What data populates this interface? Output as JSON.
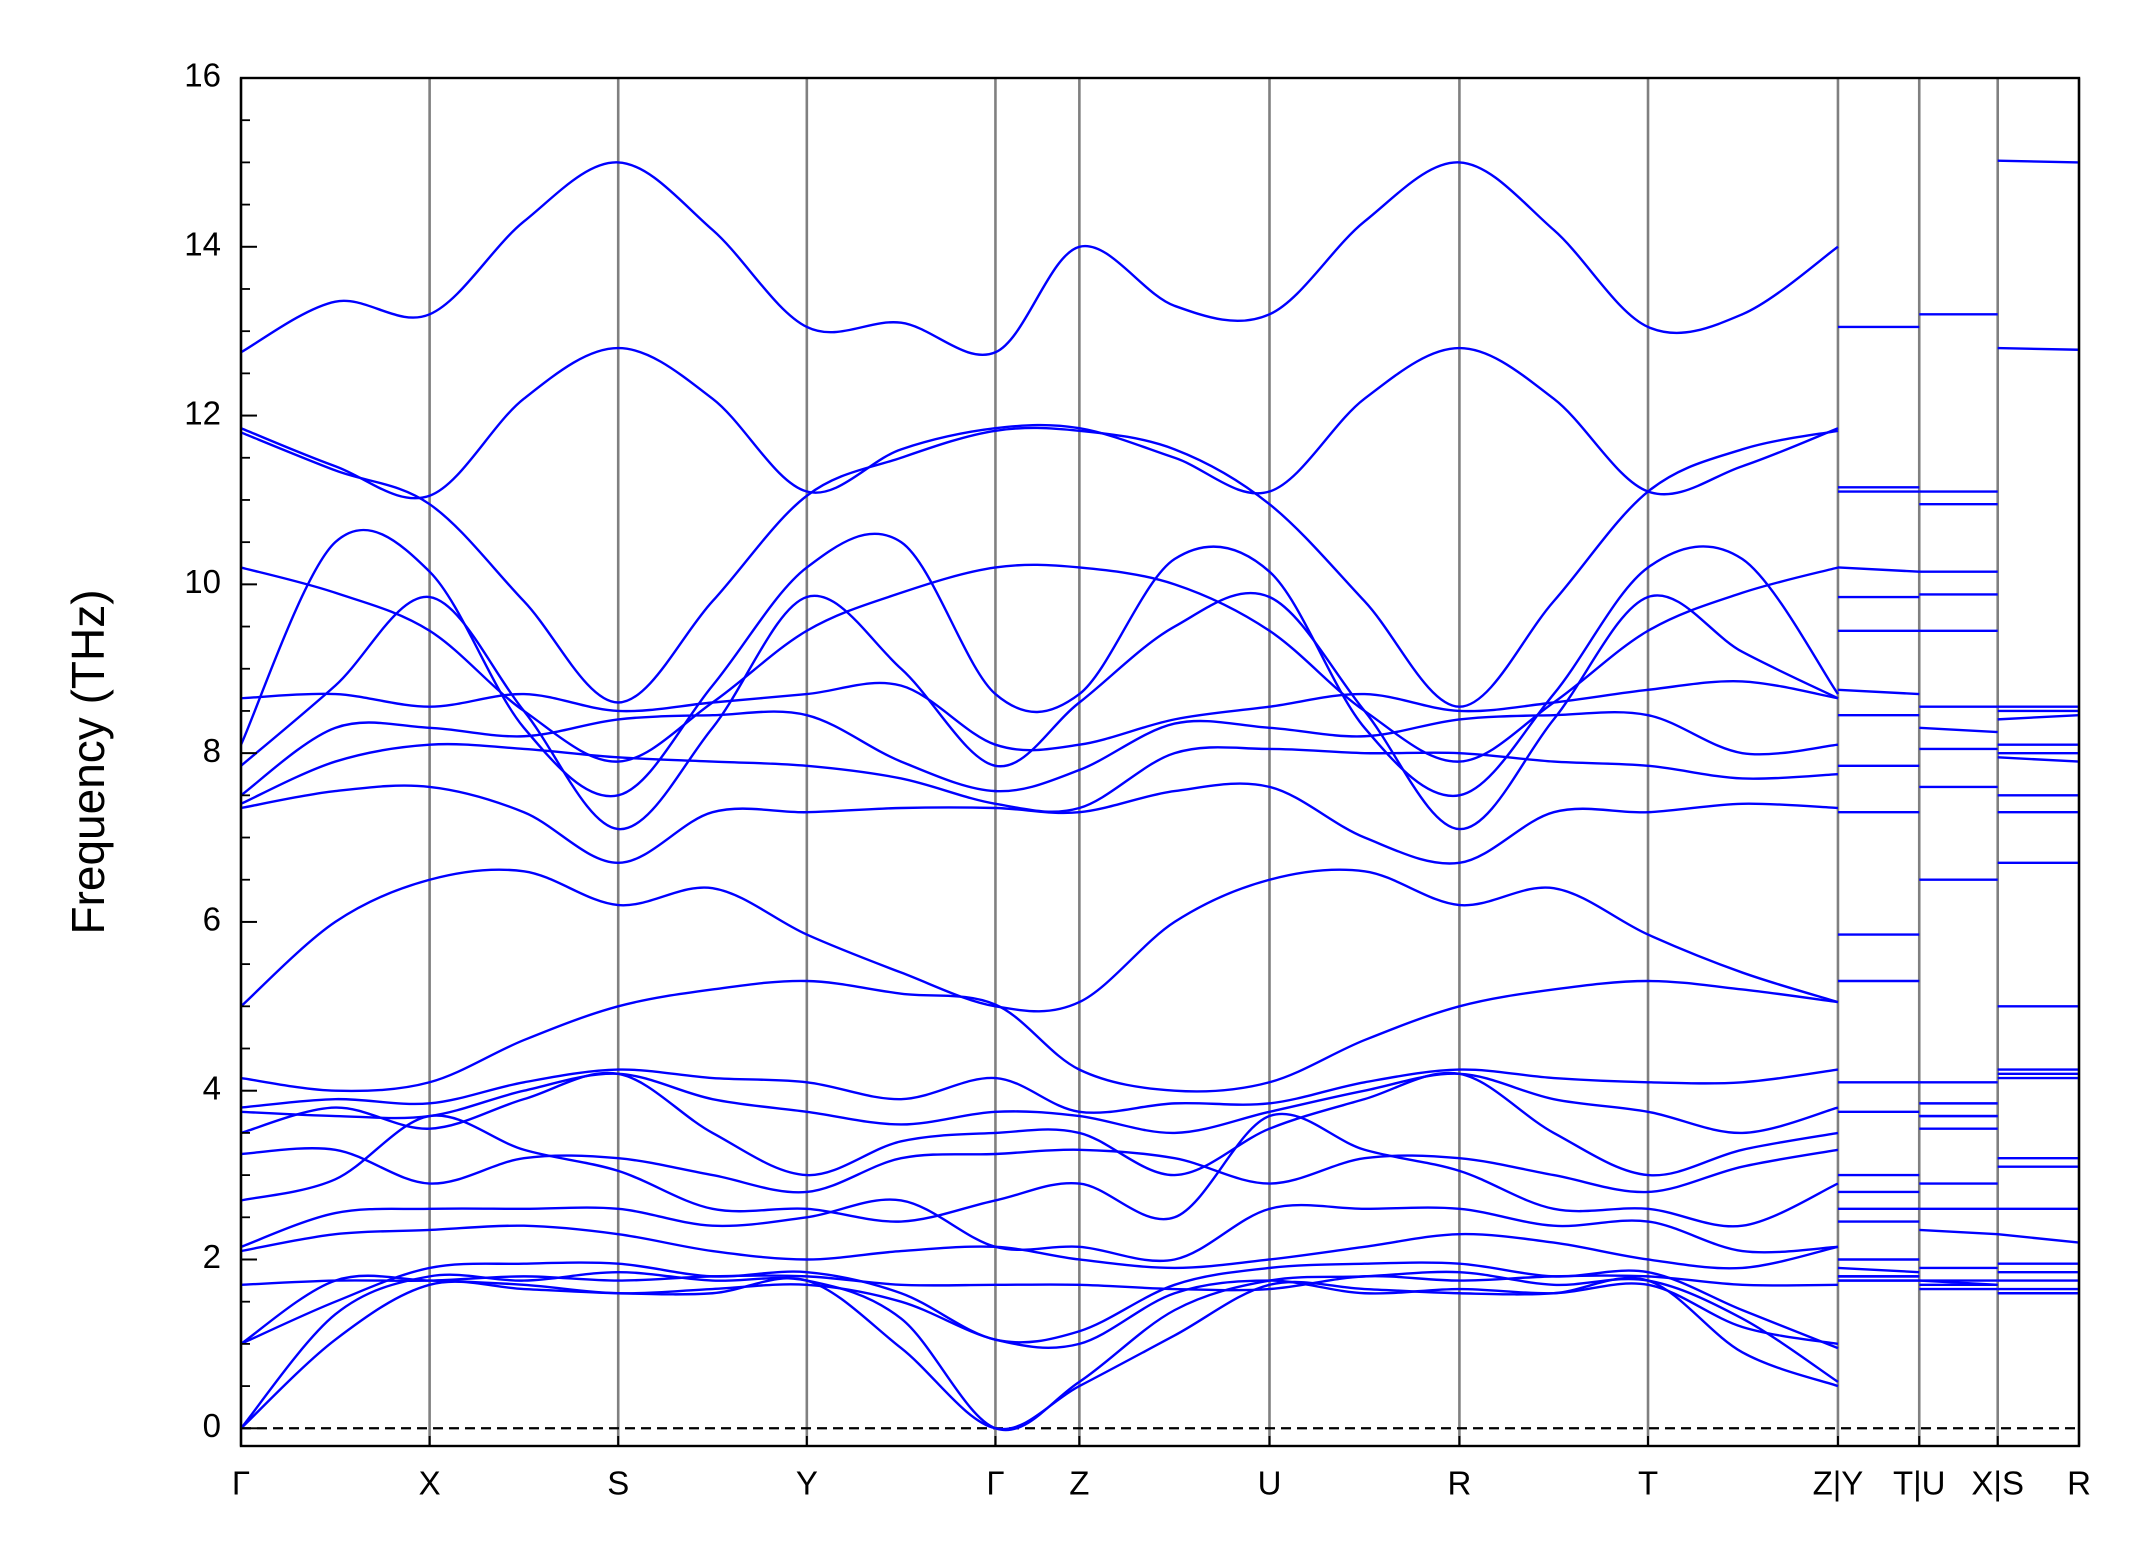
{
  "chart_data": {
    "type": "line",
    "y_label": "Frequency (THz)",
    "x": [
      0,
      0.5,
      1,
      1.5,
      2,
      2.5,
      3,
      3.5,
      4,
      4.445,
      4.95,
      5.453,
      5.957,
      6.46,
      6.96,
      7.46,
      7.96,
      8.467,
      8.467,
      8.467,
      8.898,
      8.898,
      8.898,
      9.314,
      9.314,
      9.314,
      9.745
    ],
    "xlim": [
      0,
      9.745
    ],
    "xticks": [
      {
        "value": 0,
        "label": "Γ"
      },
      {
        "value": 1,
        "label": "X"
      },
      {
        "value": 2,
        "label": "S"
      },
      {
        "value": 3,
        "label": "Y"
      },
      {
        "value": 4,
        "label": "Γ"
      },
      {
        "value": 4.445,
        "label": "Z"
      },
      {
        "value": 5.453,
        "label": "U"
      },
      {
        "value": 6.46,
        "label": "R"
      },
      {
        "value": 7.46,
        "label": "T"
      },
      {
        "value": 8.467,
        "label": "Z|Y"
      },
      {
        "value": 8.898,
        "label": "T|U"
      },
      {
        "value": 9.314,
        "label": "X|S"
      },
      {
        "value": 9.745,
        "label": "R"
      }
    ],
    "ylim": [
      -0.21,
      16
    ],
    "yticks": [
      0,
      2,
      4,
      6,
      8,
      10,
      12,
      14,
      16
    ],
    "yminorticks": [
      0.5,
      1,
      1.5,
      2.5,
      3,
      3.5,
      4.5,
      5,
      5.5,
      6.5,
      7,
      7.5,
      8.5,
      9,
      9.5,
      10.5,
      11,
      11.5,
      12.5,
      13,
      13.5,
      14.5,
      15,
      15.5
    ],
    "reference_line": {
      "y": 0,
      "style": "dashed",
      "color": "#000000"
    },
    "vline_color": "#808080",
    "color": "#0000ff",
    "series": [
      {
        "values": [
          12.75,
          13.35,
          13.2,
          14.3,
          15.0,
          14.2,
          13.05,
          13.1,
          12.75,
          14.0,
          13.3,
          13.2,
          14.3,
          15.0,
          14.2,
          13.05,
          13.2,
          14.0,
          null,
          13.05,
          13.05,
          null,
          13.2,
          13.2,
          null,
          15.02,
          15.0
        ]
      },
      {
        "values": [
          11.85,
          11.4,
          11.05,
          12.2,
          12.8,
          12.2,
          11.1,
          11.6,
          11.85,
          11.85,
          11.5,
          11.1,
          12.2,
          12.8,
          12.2,
          11.1,
          11.4,
          11.85,
          null,
          11.15,
          11.15,
          null,
          11.1,
          11.1,
          null,
          12.8,
          12.78
        ]
      },
      {
        "values": [
          11.8,
          11.35,
          10.95,
          9.8,
          8.6,
          9.8,
          11.05,
          11.5,
          11.82,
          11.82,
          11.6,
          10.95,
          9.8,
          8.55,
          9.8,
          11.1,
          11.6,
          11.82,
          null,
          11.1,
          11.1,
          null,
          10.95,
          10.95,
          null,
          8.55,
          8.55
        ]
      },
      {
        "values": [
          10.2,
          9.9,
          9.45,
          8.5,
          7.9,
          8.6,
          9.45,
          9.9,
          10.2,
          10.2,
          10.0,
          9.45,
          8.5,
          7.9,
          8.6,
          9.45,
          9.9,
          10.2,
          null,
          9.45,
          9.45,
          null,
          9.45,
          9.45,
          null,
          7.95,
          7.9
        ]
      },
      {
        "values": [
          8.1,
          10.5,
          10.15,
          8.3,
          7.5,
          8.8,
          10.2,
          10.5,
          8.7,
          8.7,
          10.3,
          10.15,
          8.3,
          7.5,
          8.7,
          10.2,
          10.3,
          8.7,
          null,
          10.2,
          10.15,
          null,
          10.15,
          10.15,
          null,
          7.5,
          7.5
        ]
      },
      {
        "values": [
          7.85,
          8.8,
          9.85,
          8.5,
          7.1,
          8.3,
          9.85,
          9.0,
          7.85,
          8.6,
          9.5,
          9.85,
          8.5,
          7.1,
          8.4,
          9.85,
          9.2,
          8.65,
          null,
          9.85,
          9.85,
          null,
          9.88,
          9.88,
          null,
          8.1,
          8.1
        ]
      },
      {
        "values": [
          8.65,
          8.7,
          8.55,
          8.7,
          8.5,
          8.6,
          8.7,
          8.8,
          8.1,
          8.1,
          8.4,
          8.55,
          8.7,
          8.5,
          8.6,
          8.75,
          8.85,
          8.65,
          null,
          8.75,
          8.7,
          null,
          8.55,
          8.55,
          null,
          8.5,
          8.5
        ]
      },
      {
        "values": [
          7.5,
          8.3,
          8.3,
          8.2,
          8.4,
          8.45,
          8.45,
          7.9,
          7.55,
          7.8,
          8.35,
          8.3,
          8.2,
          8.4,
          8.45,
          8.45,
          8.0,
          8.1,
          null,
          8.45,
          8.45,
          null,
          8.3,
          8.25,
          null,
          8.4,
          8.45
        ]
      },
      {
        "values": [
          7.4,
          7.9,
          8.1,
          8.05,
          7.95,
          7.9,
          7.85,
          7.7,
          7.4,
          7.35,
          8.0,
          8.05,
          8.0,
          8.0,
          7.9,
          7.85,
          7.7,
          7.75,
          null,
          7.85,
          7.85,
          null,
          8.05,
          8.05,
          null,
          8.0,
          8.0
        ]
      },
      {
        "values": [
          7.35,
          7.55,
          7.6,
          7.3,
          6.7,
          7.3,
          7.3,
          7.35,
          7.35,
          7.3,
          7.55,
          7.6,
          7.0,
          6.7,
          7.3,
          7.3,
          7.4,
          7.35,
          null,
          7.3,
          7.3,
          null,
          7.6,
          7.6,
          null,
          7.3,
          7.3
        ]
      },
      {
        "values": [
          5.0,
          6.0,
          6.5,
          6.6,
          6.2,
          6.4,
          5.85,
          5.4,
          5.0,
          5.05,
          6.0,
          6.5,
          6.6,
          6.2,
          6.4,
          5.85,
          5.4,
          5.05,
          null,
          5.85,
          5.85,
          null,
          6.5,
          6.5,
          null,
          6.7,
          6.7
        ]
      },
      {
        "values": [
          4.15,
          4.0,
          4.1,
          4.6,
          5.0,
          5.2,
          5.3,
          5.15,
          5.02,
          4.25,
          4.0,
          4.1,
          4.6,
          5.0,
          5.2,
          5.3,
          5.2,
          5.05,
          null,
          5.3,
          5.3,
          null,
          4.1,
          4.1,
          null,
          5.0,
          5.0
        ]
      },
      {
        "values": [
          3.8,
          3.9,
          3.85,
          4.1,
          4.25,
          4.15,
          4.1,
          3.9,
          4.15,
          3.75,
          3.85,
          3.85,
          4.1,
          4.25,
          4.15,
          4.1,
          4.1,
          4.25,
          null,
          4.1,
          4.1,
          null,
          3.85,
          3.85,
          null,
          4.25,
          4.25
        ]
      },
      {
        "values": [
          3.75,
          3.7,
          3.7,
          4.0,
          4.2,
          3.9,
          3.75,
          3.6,
          3.75,
          3.7,
          3.5,
          3.75,
          4.0,
          4.2,
          3.9,
          3.75,
          3.5,
          3.8,
          null,
          3.75,
          3.75,
          null,
          3.7,
          3.7,
          null,
          4.2,
          4.2
        ]
      },
      {
        "values": [
          3.5,
          3.8,
          3.55,
          3.9,
          4.2,
          3.5,
          3.0,
          3.4,
          3.5,
          3.5,
          3.0,
          3.55,
          3.9,
          4.2,
          3.5,
          3.0,
          3.3,
          3.5,
          null,
          3.0,
          3.0,
          null,
          3.55,
          3.55,
          null,
          4.15,
          4.15
        ]
      },
      {
        "values": [
          3.25,
          3.3,
          2.9,
          3.2,
          3.2,
          3.0,
          2.8,
          3.2,
          3.25,
          3.3,
          3.2,
          2.9,
          3.2,
          3.2,
          3.0,
          2.8,
          3.1,
          3.3,
          null,
          2.8,
          2.8,
          null,
          2.9,
          2.9,
          null,
          3.2,
          3.2
        ]
      },
      {
        "values": [
          2.7,
          2.95,
          3.7,
          3.3,
          3.05,
          2.6,
          2.6,
          2.45,
          2.7,
          2.9,
          2.5,
          3.7,
          3.3,
          3.05,
          2.6,
          2.6,
          2.4,
          2.9,
          null,
          2.6,
          2.6,
          null,
          3.7,
          3.7,
          null,
          3.1,
          3.1
        ]
      },
      {
        "values": [
          2.15,
          2.55,
          2.6,
          2.6,
          2.6,
          2.4,
          2.5,
          2.7,
          2.15,
          2.15,
          2.0,
          2.6,
          2.6,
          2.6,
          2.4,
          2.45,
          2.1,
          2.15,
          null,
          2.45,
          2.45,
          null,
          2.6,
          2.6,
          null,
          2.6,
          2.6
        ]
      },
      {
        "values": [
          2.1,
          2.3,
          2.35,
          2.4,
          2.3,
          2.1,
          2.0,
          2.1,
          2.15,
          2.0,
          1.9,
          2.0,
          2.15,
          2.3,
          2.2,
          2.0,
          1.9,
          2.15,
          null,
          2.0,
          2.0,
          null,
          2.35,
          2.3,
          null,
          2.3,
          2.2
        ]
      },
      {
        "values": [
          1.0,
          1.5,
          1.9,
          1.95,
          1.95,
          1.8,
          1.85,
          1.6,
          1.05,
          1.15,
          1.7,
          1.9,
          1.95,
          1.95,
          1.8,
          1.85,
          1.4,
          0.95,
          null,
          1.9,
          1.85,
          null,
          1.9,
          1.9,
          null,
          1.95,
          1.95
        ]
      },
      {
        "values": [
          0,
          1.35,
          1.8,
          1.75,
          1.85,
          1.75,
          1.75,
          1.3,
          0,
          0.55,
          1.4,
          1.75,
          1.8,
          1.85,
          1.7,
          1.75,
          1.3,
          0.55,
          null,
          1.75,
          1.75,
          null,
          1.75,
          1.75,
          null,
          1.85,
          1.85
        ]
      },
      {
        "values": [
          0,
          1.05,
          1.7,
          1.65,
          1.6,
          1.6,
          1.75,
          0.95,
          0,
          0.5,
          1.1,
          1.7,
          1.65,
          1.6,
          1.6,
          1.75,
          0.9,
          0.5,
          null,
          1.75,
          1.75,
          null,
          1.7,
          1.7,
          null,
          1.6,
          1.6
        ]
      },
      {
        "values": [
          1.0,
          1.75,
          1.75,
          1.7,
          1.6,
          1.65,
          1.7,
          1.5,
          1.05,
          1.0,
          1.6,
          1.75,
          1.6,
          1.65,
          1.6,
          1.7,
          1.2,
          1.0,
          null,
          1.8,
          1.8,
          null,
          1.75,
          1.7,
          null,
          1.65,
          1.65
        ]
      },
      {
        "values": [
          1.7,
          1.75,
          1.75,
          1.8,
          1.75,
          1.8,
          1.8,
          1.7,
          1.7,
          1.7,
          1.65,
          1.65,
          1.8,
          1.75,
          1.8,
          1.8,
          1.7,
          1.7,
          null,
          1.8,
          1.8,
          null,
          1.65,
          1.65,
          null,
          1.75,
          1.75
        ]
      }
    ]
  }
}
